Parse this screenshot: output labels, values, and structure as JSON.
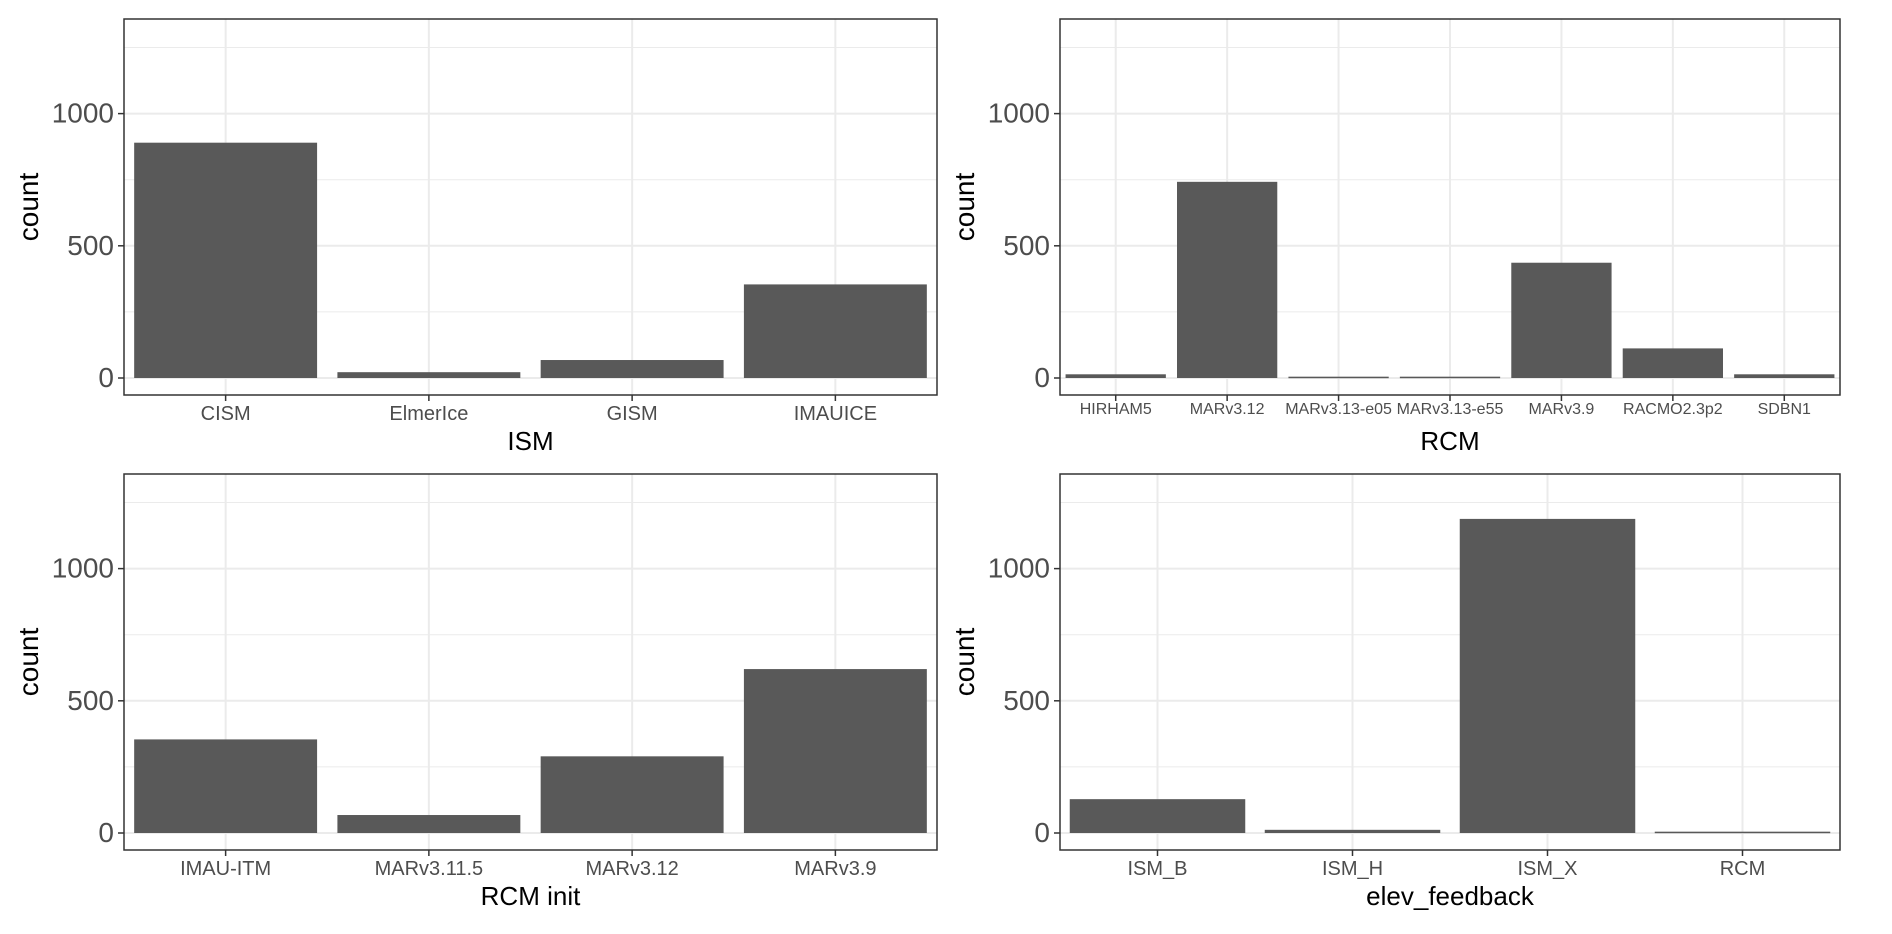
{
  "figure": {
    "bar_color": "#595959",
    "grid_color": "#ebebeb",
    "border_color": "#333333"
  },
  "chart_data": [
    {
      "type": "bar",
      "title": "",
      "xlabel": "ISM",
      "ylabel": "count",
      "categories": [
        "CISM",
        "ElmerIce",
        "GISM",
        "IMAUICE"
      ],
      "values": [
        890,
        22,
        68,
        354
      ],
      "ylim": [
        0,
        1320
      ],
      "yticks": [
        0,
        500,
        1000
      ],
      "ytick_labels": [
        "0",
        "500",
        "1000"
      ],
      "grid": true,
      "legend": "none"
    },
    {
      "type": "bar",
      "title": "",
      "xlabel": "RCM",
      "ylabel": "count",
      "categories": [
        "HIRHAM5",
        "MARv3.12",
        "MARv3.13-e05",
        "MARv3.13-e55",
        "MARv3.9",
        "RACMO2.3p2",
        "SDBN1"
      ],
      "values": [
        14,
        742,
        5,
        5,
        436,
        112,
        14
      ],
      "ylim": [
        0,
        1320
      ],
      "yticks": [
        0,
        500,
        1000
      ],
      "ytick_labels": [
        "0",
        "500",
        "1000"
      ],
      "grid": true,
      "legend": "none"
    },
    {
      "type": "bar",
      "title": "",
      "xlabel": "RCM init",
      "ylabel": "count",
      "categories": [
        "IMAU-ITM",
        "MARv3.11.5",
        "MARv3.12",
        "MARv3.9"
      ],
      "values": [
        354,
        68,
        290,
        620
      ],
      "ylim": [
        0,
        1320
      ],
      "yticks": [
        0,
        500,
        1000
      ],
      "ytick_labels": [
        "0",
        "500",
        "1000"
      ],
      "grid": true,
      "legend": "none"
    },
    {
      "type": "bar",
      "title": "",
      "xlabel": "elev_feedback",
      "ylabel": "count",
      "categories": [
        "ISM_B",
        "ISM_H",
        "ISM_X",
        "RCM"
      ],
      "values": [
        128,
        12,
        1188,
        5
      ],
      "ylim": [
        0,
        1320
      ],
      "yticks": [
        0,
        500,
        1000
      ],
      "ytick_labels": [
        "0",
        "500",
        "1000"
      ],
      "grid": true,
      "legend": "none"
    }
  ]
}
